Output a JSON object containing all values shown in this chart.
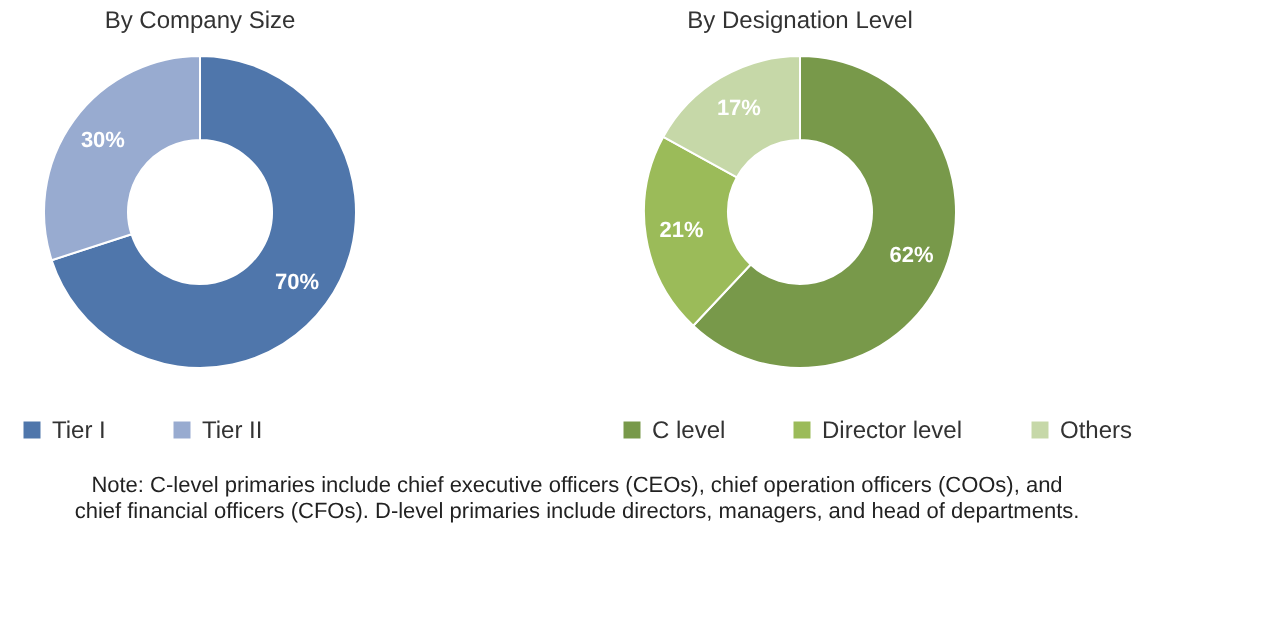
{
  "chart_data": [
    {
      "type": "donut",
      "title": "By Company Size",
      "categories": [
        "Tier I",
        "Tier II"
      ],
      "values": [
        70,
        30
      ],
      "colors": [
        "#4f76ab",
        "#98abd0"
      ],
      "value_labels": [
        "70%",
        "30%"
      ],
      "legend": "bottom"
    },
    {
      "type": "donut",
      "title": "By Designation Level",
      "categories": [
        "C level",
        "Director level",
        "Others"
      ],
      "values": [
        62,
        21,
        17
      ],
      "colors": [
        "#78994a",
        "#9bbb59",
        "#c6d8a8"
      ],
      "value_labels": [
        "62%",
        "21%",
        "17%"
      ],
      "legend": "bottom",
      "annotations": [
        "Note: C-level primaries include chief executive officers (CEOs), chief operation officers (COOs), and chief financial officers (CFOs). D-level primaries include directors, managers, and head of departments."
      ]
    }
  ]
}
